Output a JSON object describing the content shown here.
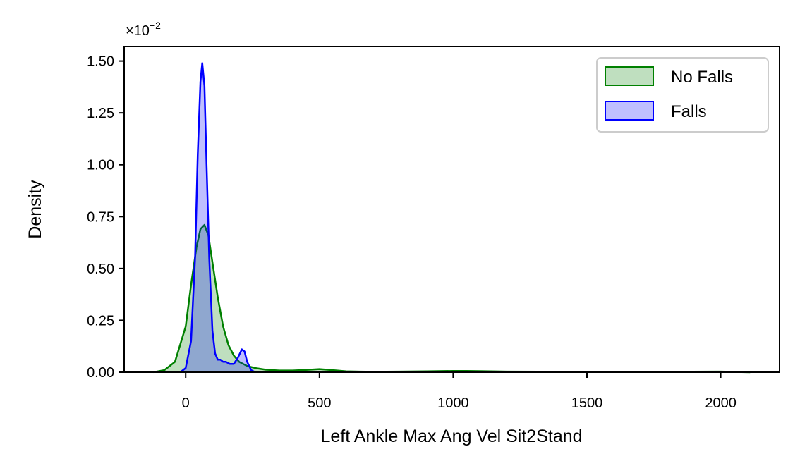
{
  "chart_data": {
    "type": "area",
    "xlabel": "Left Ankle Max Ang Vel Sit2Stand",
    "ylabel": "Density",
    "y_offset_label": "×10",
    "y_offset_exponent": "−2",
    "xlim": [
      -230,
      2220
    ],
    "ylim": [
      0,
      1.57
    ],
    "x_ticks": [
      0,
      500,
      1000,
      1500,
      2000
    ],
    "x_tick_labels": [
      "0",
      "500",
      "1000",
      "1500",
      "2000"
    ],
    "y_ticks": [
      0,
      0.25,
      0.5,
      0.75,
      1.0,
      1.25,
      1.5
    ],
    "y_tick_labels": [
      "0.00",
      "0.25",
      "0.50",
      "0.75",
      "1.00",
      "1.25",
      "1.50"
    ],
    "grid": false,
    "legend_position": "top-right",
    "series": [
      {
        "name": "No Falls",
        "color": "#008000",
        "fill": "#008000",
        "x": [
          -120,
          -80,
          -40,
          0,
          20,
          40,
          55,
          70,
          85,
          100,
          120,
          140,
          160,
          180,
          200,
          230,
          260,
          300,
          350,
          400,
          450,
          500,
          550,
          600,
          700,
          800,
          900,
          1000,
          1050,
          1100,
          1200,
          1400,
          1600,
          1800,
          2000,
          2110
        ],
        "y": [
          0.0,
          0.01,
          0.05,
          0.22,
          0.42,
          0.6,
          0.69,
          0.71,
          0.66,
          0.53,
          0.36,
          0.22,
          0.13,
          0.08,
          0.05,
          0.03,
          0.02,
          0.012,
          0.008,
          0.008,
          0.011,
          0.015,
          0.01,
          0.004,
          0.002,
          0.003,
          0.004,
          0.006,
          0.006,
          0.005,
          0.003,
          0.002,
          0.002,
          0.002,
          0.003,
          0.0
        ]
      },
      {
        "name": "Falls",
        "color": "#0000ff",
        "fill": "#0000ff",
        "x": [
          -20,
          0,
          20,
          35,
          45,
          55,
          62,
          70,
          78,
          88,
          100,
          110,
          120,
          130,
          140,
          150,
          165,
          180,
          195,
          210,
          220,
          230,
          245,
          260
        ],
        "y": [
          0.0,
          0.02,
          0.15,
          0.55,
          1.05,
          1.4,
          1.49,
          1.38,
          1.0,
          0.55,
          0.2,
          0.09,
          0.06,
          0.06,
          0.05,
          0.05,
          0.04,
          0.04,
          0.07,
          0.11,
          0.1,
          0.05,
          0.01,
          0.0
        ]
      }
    ]
  }
}
